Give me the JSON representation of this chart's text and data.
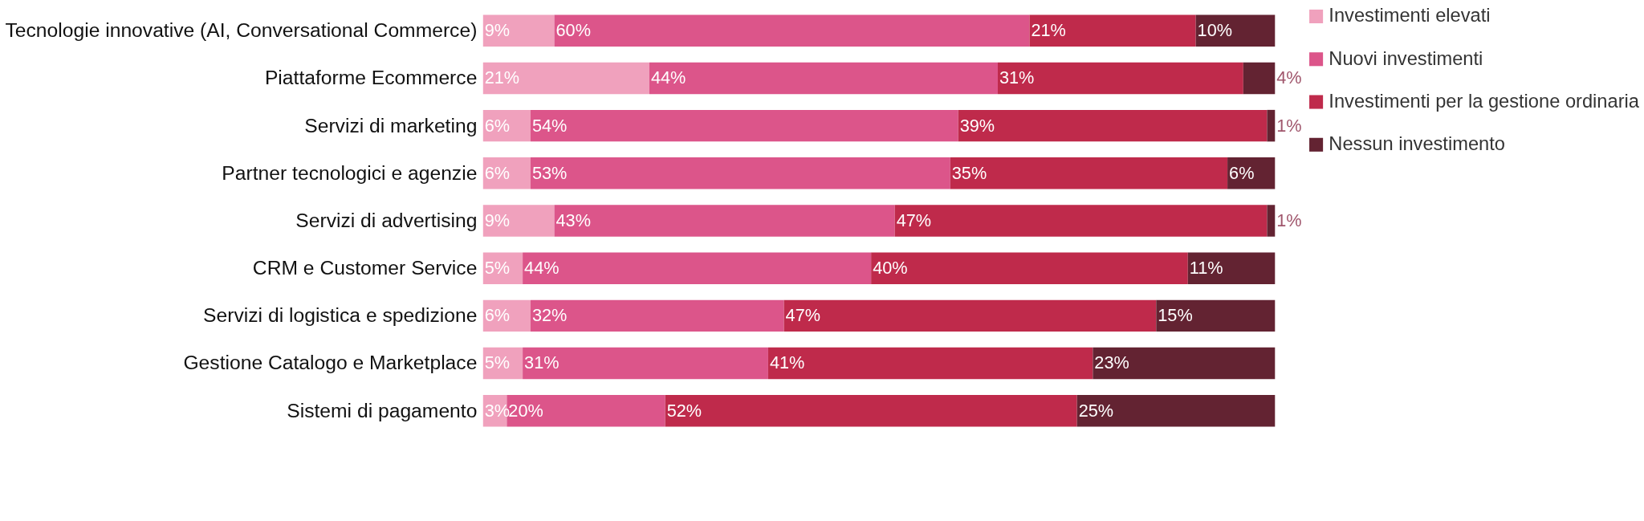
{
  "chart_data": {
    "type": "bar",
    "orientation": "horizontal",
    "stacked": true,
    "legend": "right",
    "categories": [
      "Tecnologie innovative (AI, Conversational Commerce)",
      "Piattaforme Ecommerce",
      "Servizi di marketing",
      "Partner tecnologici e agenzie",
      "Servizi di advertising",
      "CRM e Customer Service",
      "Servizi di logistica e spedizione",
      "Gestione Catalogo e Marketplace",
      "Sistemi di pagamento"
    ],
    "series": [
      {
        "name": "Investimenti elevati",
        "color": "#f0a1bd",
        "values": [
          9,
          21,
          6,
          6,
          9,
          5,
          6,
          5,
          3
        ],
        "value_labels": [
          "9%",
          "21%",
          "6%",
          "6%",
          "9%",
          "5%",
          "6%",
          "5%",
          "3%"
        ]
      },
      {
        "name": "Nuovi investimenti",
        "color": "#dc558a",
        "values": [
          60,
          44,
          54,
          53,
          43,
          44,
          32,
          31,
          20
        ],
        "value_labels": [
          "60%",
          "44%",
          "54%",
          "53%",
          "43%",
          "44%",
          "32%",
          "31%",
          "20%"
        ]
      },
      {
        "name": "Investimenti per la gestione ordinaria",
        "color": "#bf2a4b",
        "values": [
          21,
          31,
          39,
          35,
          47,
          40,
          47,
          41,
          52
        ],
        "value_labels": [
          "21%",
          "31%",
          "39%",
          "35%",
          "47%",
          "40%",
          "47%",
          "41%",
          "52%"
        ]
      },
      {
        "name": "Nessun investimento",
        "color": "#632332",
        "values": [
          10,
          4,
          1,
          6,
          1,
          11,
          15,
          23,
          25
        ],
        "value_labels": [
          "10%",
          "4%",
          "1%",
          "6%",
          "1%",
          "11%",
          "15%",
          "23%",
          "25%"
        ]
      }
    ]
  }
}
